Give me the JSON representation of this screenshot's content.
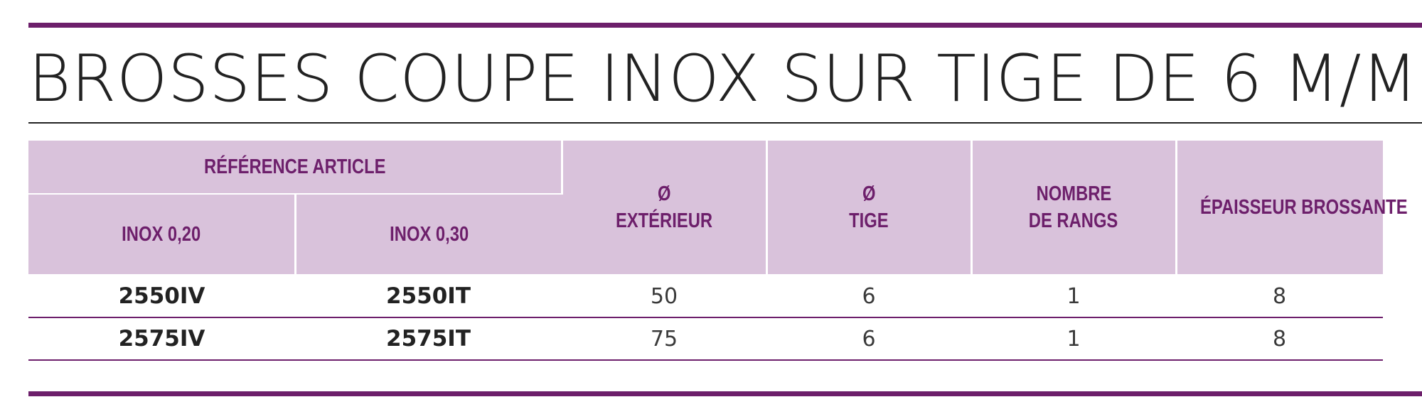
{
  "title": "BROSSES COUPE INOX SUR TIGE DE 6 M/M",
  "colors": {
    "accent": "#6d1f6b",
    "header_bg": "#d9c2db",
    "text": "#222222"
  },
  "table": {
    "group_header": "RÉFÉRENCE ARTICLE",
    "headers": {
      "inox_020": "INOX 0,20",
      "inox_030": "INOX 0,30",
      "diam_ext_symbol": "Ø",
      "diam_ext_label": "EXTÉRIEUR",
      "diam_tige_symbol": "Ø",
      "diam_tige_label": "TIGE",
      "rangs_line1": "NOMBRE",
      "rangs_line2": "DE RANGS",
      "epaisseur": "ÉPAISSEUR BROSSANTE"
    },
    "rows": [
      {
        "ref_020": "2550IV",
        "ref_030": "2550IT",
        "diam_ext": "50",
        "diam_tige": "6",
        "rangs": "1",
        "epaisseur": "8"
      },
      {
        "ref_020": "2575IV",
        "ref_030": "2575IT",
        "diam_ext": "75",
        "diam_tige": "6",
        "rangs": "1",
        "epaisseur": "8"
      }
    ]
  }
}
